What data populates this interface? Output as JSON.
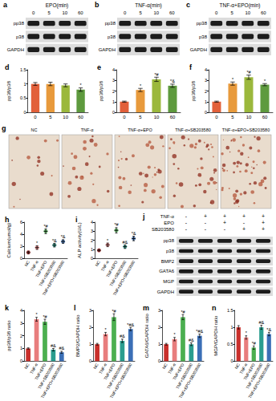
{
  "blots": [
    {
      "title": "a",
      "header": "EPO(min)",
      "lanes": [
        "0",
        "5",
        "10",
        "60"
      ],
      "rows": [
        "pp38",
        "p38",
        "GAPDH"
      ]
    },
    {
      "title": "b",
      "header": "TNF-α(min)",
      "lanes": [
        "0",
        "5",
        "10",
        "60"
      ],
      "rows": [
        "pp38",
        "p38",
        "GAPDH"
      ]
    },
    {
      "title": "c",
      "header": "TNF-α+EPO(min)",
      "lanes": [
        "0",
        "5",
        "10",
        "60"
      ],
      "rows": [
        "pp38",
        "p38",
        "GAPDH"
      ]
    }
  ],
  "micrographs": {
    "title": "g",
    "labels": [
      "NC",
      "TNF-α",
      "TNF-α+EPO",
      "TNF-α+SB203580",
      "TNF-α+EPO+SB203580"
    ]
  },
  "treatment_blot": {
    "title": "j",
    "conditions": [
      {
        "name": "TNF-α",
        "signs": [
          "-",
          "+",
          "+",
          "+",
          "+"
        ]
      },
      {
        "name": "EPO",
        "signs": [
          "-",
          "-",
          "+",
          "-",
          "+"
        ]
      },
      {
        "name": "SB203580",
        "signs": [
          "-",
          "-",
          "-",
          "+",
          "+"
        ]
      }
    ],
    "rows": [
      "pp38",
      "p38",
      "BMP2",
      "GATA6",
      "MGP",
      "GAPDH"
    ]
  },
  "chart_data": [
    {
      "title": "d",
      "type": "bar",
      "ylabel": "pp38/p38",
      "categories": [
        "0",
        "5",
        "10",
        "60"
      ],
      "values": [
        1.0,
        1.0,
        0.95,
        0.8
      ],
      "errors": [
        0.05,
        0.06,
        0.05,
        0.06
      ],
      "annotations": [
        null,
        null,
        null,
        "*"
      ],
      "colors": [
        "#e2603a",
        "#e89a3c",
        "#9bb83c",
        "#5e9a3e"
      ],
      "ylim": [
        0,
        1.5
      ],
      "yticks": [
        0,
        0.5,
        1,
        1.5
      ],
      "grid": false
    },
    {
      "title": "e",
      "type": "bar",
      "ylabel": "pp38/p38",
      "categories": [
        "0",
        "5",
        "10",
        "60"
      ],
      "values": [
        1.0,
        2.1,
        3.1,
        2.5
      ],
      "errors": [
        0.05,
        0.15,
        0.2,
        0.15
      ],
      "annotations": [
        null,
        "*",
        "*#",
        "*&"
      ],
      "colors": [
        "#e2603a",
        "#e89a3c",
        "#9bb83c",
        "#5e9a3e"
      ],
      "ylim": [
        0,
        4
      ],
      "yticks": [
        0,
        1,
        2,
        3,
        4
      ],
      "grid": false
    },
    {
      "title": "f",
      "type": "bar",
      "ylabel": "pp38/p38",
      "categories": [
        "0",
        "5",
        "10",
        "60"
      ],
      "values": [
        1.0,
        2.7,
        3.3,
        2.6
      ],
      "errors": [
        0.05,
        0.15,
        0.2,
        0.1
      ],
      "annotations": [
        null,
        "*",
        "*#",
        "*"
      ],
      "colors": [
        "#e2603a",
        "#e89a3c",
        "#9bb83c",
        "#5e9a3e"
      ],
      "ylim": [
        0,
        4
      ],
      "yticks": [
        0,
        1,
        2,
        3,
        4
      ],
      "grid": false
    },
    {
      "title": "h",
      "type": "scatter",
      "marker": "circle",
      "ylabel": "Calcium(umol/g)",
      "categories": [
        "NC",
        "TNF-α",
        "TNF+EPO",
        "TNF+SB203580",
        "TNF+EPO+SB203580"
      ],
      "values": [
        1.0,
        1.8,
        4.5,
        2.2,
        2.8
      ],
      "errors": [
        0.2,
        0.3,
        0.4,
        0.3,
        0.3
      ],
      "annotations": [
        null,
        "*",
        "*#",
        "*&",
        "*&"
      ],
      "colors": [
        "#c9302c",
        "#e87d7d",
        "#4caf50",
        "#2a9d8f",
        "#3b6fb6"
      ],
      "ylim": [
        0,
        6
      ],
      "yticks": [
        0,
        2,
        4,
        6
      ],
      "grid": false
    },
    {
      "title": "i",
      "type": "scatter",
      "marker": "circle",
      "ylabel": "ALP activity(U/L)",
      "categories": [
        "NC",
        "TNF-α",
        "TNF+EPO",
        "TNF+SB203580",
        "TNF+EPO+SB203580"
      ],
      "values": [
        0.9,
        1.5,
        3.1,
        1.3,
        2.2
      ],
      "errors": [
        0.1,
        0.2,
        0.3,
        0.2,
        0.25
      ],
      "annotations": [
        null,
        "*",
        "*#",
        "#&",
        "*&"
      ],
      "colors": [
        "#c9302c",
        "#e87d7d",
        "#4caf50",
        "#2a9d8f",
        "#3b6fb6"
      ],
      "ylim": [
        0,
        4
      ],
      "yticks": [
        0,
        1,
        2,
        3,
        4
      ],
      "grid": false
    },
    {
      "title": "k",
      "type": "bar",
      "ylabel": "pp38/p38 ratio",
      "categories": [
        "NC",
        "TNF-α",
        "TNF+EPO",
        "TNF+SB203580",
        "TNF+EPO+SB203580"
      ],
      "values": [
        1.0,
        3.3,
        3.1,
        0.9,
        0.7
      ],
      "errors": [
        0.05,
        0.15,
        0.2,
        0.1,
        0.08
      ],
      "annotations": [
        null,
        "*",
        "*#",
        "#&",
        "#&"
      ],
      "colors": [
        "#c9302c",
        "#e87d7d",
        "#4caf50",
        "#2a9d8f",
        "#3b6fb6"
      ],
      "ylim": [
        0,
        4
      ],
      "yticks": [
        0,
        1,
        2,
        3,
        4
      ],
      "grid": false
    },
    {
      "title": "l",
      "type": "bar",
      "ylabel": "BMP2/GAPDH ratio",
      "categories": [
        "NC",
        "TNF-α",
        "TNF+EPO",
        "TNF+SB203580",
        "TNF+EPO+SB203580"
      ],
      "values": [
        1.0,
        1.6,
        2.6,
        1.2,
        1.9
      ],
      "errors": [
        0.05,
        0.1,
        0.2,
        0.1,
        0.1
      ],
      "annotations": [
        null,
        "*",
        "*#",
        "#&",
        "*#&"
      ],
      "colors": [
        "#c9302c",
        "#e87d7d",
        "#4caf50",
        "#2a9d8f",
        "#3b6fb6"
      ],
      "ylim": [
        0,
        3
      ],
      "yticks": [
        0,
        1,
        2,
        3
      ],
      "grid": false
    },
    {
      "title": "m",
      "type": "bar",
      "ylabel": "GATA6/GAPDH ratio",
      "categories": [
        "NC",
        "TNF-α",
        "TNF+EPO",
        "TNF+SB203580",
        "TNF+EPO+SB203580"
      ],
      "values": [
        1.0,
        1.3,
        2.6,
        1.0,
        1.5
      ],
      "errors": [
        0.05,
        0.1,
        0.15,
        0.08,
        0.1
      ],
      "annotations": [
        null,
        "*",
        "*#",
        "#&",
        "*#&"
      ],
      "colors": [
        "#c9302c",
        "#e87d7d",
        "#4caf50",
        "#2a9d8f",
        "#3b6fb6"
      ],
      "ylim": [
        0,
        3
      ],
      "yticks": [
        0,
        1,
        2,
        3
      ],
      "grid": false
    },
    {
      "title": "n",
      "type": "bar",
      "ylabel": "MGP/GAPDH ratio",
      "categories": [
        "NC",
        "TNF-α",
        "TNF+EPO",
        "TNF+SB203580",
        "TNF+EPO+SB203580"
      ],
      "values": [
        1.0,
        0.7,
        0.4,
        1.0,
        0.8
      ],
      "errors": [
        0.05,
        0.05,
        0.05,
        0.06,
        0.05
      ],
      "annotations": [
        null,
        "*",
        "*#",
        "#&",
        "*&"
      ],
      "colors": [
        "#c9302c",
        "#e87d7d",
        "#4caf50",
        "#2a9d8f",
        "#3b6fb6"
      ],
      "ylim": [
        0,
        1.5
      ],
      "yticks": [
        0,
        0.5,
        1,
        1.5
      ],
      "grid": false
    }
  ]
}
